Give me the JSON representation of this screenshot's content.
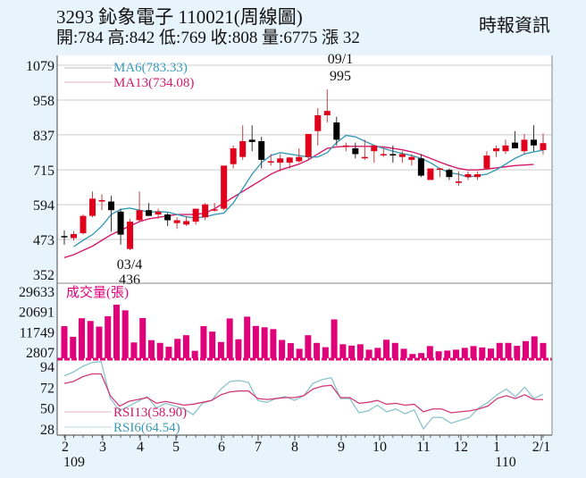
{
  "header": {
    "title": "3293  鈊象電子 110021(周線圖)",
    "summary": "開:784 高:842 低:769 收:808 量:6775 漲 32",
    "source": "時報資訊"
  },
  "colors": {
    "up": "#e0001b",
    "down": "#000000",
    "ma6": "#3a9ab8",
    "ma13": "#d21a6a",
    "volume": "#e0007a",
    "rsi6": "#8cc4cc",
    "rsi13": "#d03a78",
    "grid": "#dddddd"
  },
  "chart_data": [
    {
      "type": "candlestick",
      "title": "3293 鈊象電子 110021(周線圖)",
      "ohlc_last": {
        "open": 784,
        "high": 842,
        "low": 769,
        "close": 808,
        "volume": 6775,
        "change": 32
      },
      "yticks": [
        1079,
        958,
        837,
        715,
        594,
        473,
        352
      ],
      "ylim": [
        352,
        1079
      ],
      "legend": [
        {
          "name": "MA6",
          "value": "MA6(783.33)"
        },
        {
          "name": "MA13",
          "value": "MA13(734.08)"
        }
      ],
      "annotations": [
        {
          "label": "03/4",
          "value": "436"
        },
        {
          "label": "09/1",
          "value": "995"
        }
      ],
      "candles": [
        [
          485,
          505,
          455,
          482
        ],
        [
          478,
          502,
          470,
          492
        ],
        [
          495,
          560,
          490,
          555
        ],
        [
          555,
          640,
          550,
          615
        ],
        [
          605,
          630,
          575,
          610
        ],
        [
          605,
          625,
          500,
          575
        ],
        [
          570,
          580,
          455,
          490
        ],
        [
          440,
          545,
          436,
          535
        ],
        [
          540,
          640,
          535,
          575
        ],
        [
          575,
          600,
          570,
          555
        ],
        [
          560,
          580,
          545,
          570
        ],
        [
          560,
          565,
          520,
          540
        ],
        [
          530,
          550,
          510,
          540
        ],
        [
          525,
          555,
          520,
          537
        ],
        [
          535,
          570,
          525,
          580
        ],
        [
          550,
          600,
          540,
          595
        ],
        [
          575,
          600,
          570,
          578
        ],
        [
          580,
          720,
          575,
          730
        ],
        [
          735,
          800,
          720,
          790
        ],
        [
          760,
          870,
          750,
          815
        ],
        [
          820,
          870,
          780,
          812
        ],
        [
          815,
          830,
          720,
          750
        ],
        [
          745,
          770,
          730,
          745
        ],
        [
          740,
          770,
          710,
          755
        ],
        [
          740,
          760,
          720,
          758
        ],
        [
          745,
          790,
          740,
          760
        ],
        [
          760,
          840,
          750,
          840
        ],
        [
          850,
          930,
          800,
          905
        ],
        [
          905,
          995,
          880,
          920
        ],
        [
          880,
          900,
          800,
          820
        ],
        [
          800,
          810,
          780,
          800
        ],
        [
          790,
          810,
          755,
          770
        ],
        [
          760,
          820,
          750,
          760
        ],
        [
          780,
          800,
          740,
          800
        ],
        [
          770,
          790,
          760,
          770
        ],
        [
          770,
          800,
          740,
          765
        ],
        [
          760,
          780,
          740,
          770
        ],
        [
          750,
          770,
          730,
          760
        ],
        [
          755,
          770,
          690,
          695
        ],
        [
          680,
          720,
          680,
          720
        ],
        [
          720,
          720,
          690,
          720
        ],
        [
          715,
          720,
          680,
          690
        ],
        [
          670,
          710,
          660,
          675
        ],
        [
          690,
          710,
          680,
          700
        ],
        [
          690,
          710,
          680,
          700
        ],
        [
          720,
          780,
          715,
          765
        ],
        [
          780,
          800,
          760,
          790
        ],
        [
          780,
          820,
          770,
          800
        ],
        [
          810,
          850,
          800,
          790
        ],
        [
          780,
          840,
          770,
          820
        ],
        [
          820,
          870,
          780,
          800
        ],
        [
          784,
          842,
          769,
          808
        ]
      ],
      "ma6": [
        448,
        470,
        490,
        520,
        560,
        578,
        582,
        575,
        568,
        570,
        568,
        560,
        552,
        548,
        552,
        560,
        565,
        600,
        650,
        700,
        740,
        765,
        775,
        770,
        765,
        760,
        760,
        775,
        810,
        835,
        830,
        815,
        800,
        790,
        780,
        772,
        765,
        755,
        740,
        720,
        705,
        700,
        690,
        695,
        700,
        715,
        735,
        755,
        770,
        778,
        783.33
      ],
      "ma13": [
        410,
        420,
        435,
        450,
        470,
        490,
        505,
        520,
        535,
        545,
        550,
        555,
        560,
        560,
        560,
        565,
        580,
        600,
        620,
        640,
        660,
        680,
        700,
        715,
        725,
        735,
        750,
        770,
        790,
        795,
        797,
        797,
        797,
        797,
        795,
        790,
        785,
        778,
        768,
        755,
        742,
        730,
        720,
        715,
        715,
        718,
        722,
        726,
        730,
        732,
        734.08
      ]
    },
    {
      "type": "bar",
      "title": "成交量(張)",
      "yticks": [
        29633,
        20691,
        11749,
        2807
      ],
      "values": [
        14200,
        9500,
        17700,
        16500,
        14000,
        18600,
        23700,
        21200,
        7000,
        17800,
        8000,
        6800,
        5100,
        8600,
        10200,
        3300,
        14200,
        11800,
        7200,
        17600,
        8400,
        18400,
        14300,
        13700,
        12900,
        8100,
        6700,
        4200,
        10200,
        6800,
        4900,
        17200,
        6200,
        5600,
        6200,
        3800,
        4600,
        8200,
        6800,
        4200,
        1900,
        2300,
        5400,
        3100,
        3400,
        3800,
        4600,
        5400,
        4800,
        4300,
        6800,
        6800,
        5500,
        7600,
        9700,
        6775
      ],
      "ylim": [
        0,
        29633
      ]
    },
    {
      "type": "line",
      "title": "RSI",
      "yticks": [
        94,
        72,
        50,
        28
      ],
      "legend": [
        {
          "name": "RSI13",
          "value": "RSI13(58.90)"
        },
        {
          "name": "RSI6",
          "value": "RSI6(64.54)"
        }
      ],
      "series": [
        {
          "name": "RSI6",
          "values": [
            84,
            88,
            94,
            98,
            99,
            60,
            47,
            52,
            57,
            62,
            50,
            55,
            52,
            49,
            43,
            55,
            58,
            70,
            78,
            79,
            77,
            58,
            56,
            60,
            62,
            58,
            63,
            76,
            80,
            82,
            60,
            60,
            45,
            47,
            53,
            46,
            49,
            44,
            48,
            28,
            40,
            40,
            34,
            37,
            40,
            50,
            56,
            64,
            70,
            62,
            72,
            60,
            64.54
          ]
        },
        {
          "name": "RSI13",
          "values": [
            76,
            78,
            83,
            86,
            86,
            63,
            52,
            57,
            59,
            61,
            55,
            57,
            55,
            53,
            54,
            56,
            58,
            64,
            67,
            68,
            68,
            60,
            59,
            60,
            61,
            61,
            63,
            70,
            73,
            74,
            61,
            61,
            55,
            56,
            58,
            54,
            55,
            53,
            54,
            46,
            49,
            49,
            45,
            46,
            47,
            49,
            52,
            60,
            63,
            60,
            64,
            59,
            58.9
          ]
        }
      ]
    }
  ],
  "xaxis": {
    "ticks": [
      {
        "label": "2",
        "sub": "109"
      },
      {
        "label": "3",
        "sub": ""
      },
      {
        "label": "4",
        "sub": ""
      },
      {
        "label": "5",
        "sub": ""
      },
      {
        "label": "6",
        "sub": ""
      },
      {
        "label": "7",
        "sub": ""
      },
      {
        "label": "8",
        "sub": ""
      },
      {
        "label": "9",
        "sub": ""
      },
      {
        "label": "10",
        "sub": ""
      },
      {
        "label": "11",
        "sub": ""
      },
      {
        "label": "12",
        "sub": ""
      },
      {
        "label": "1",
        "sub": "110"
      },
      {
        "label": "2/1",
        "sub": ""
      }
    ]
  }
}
